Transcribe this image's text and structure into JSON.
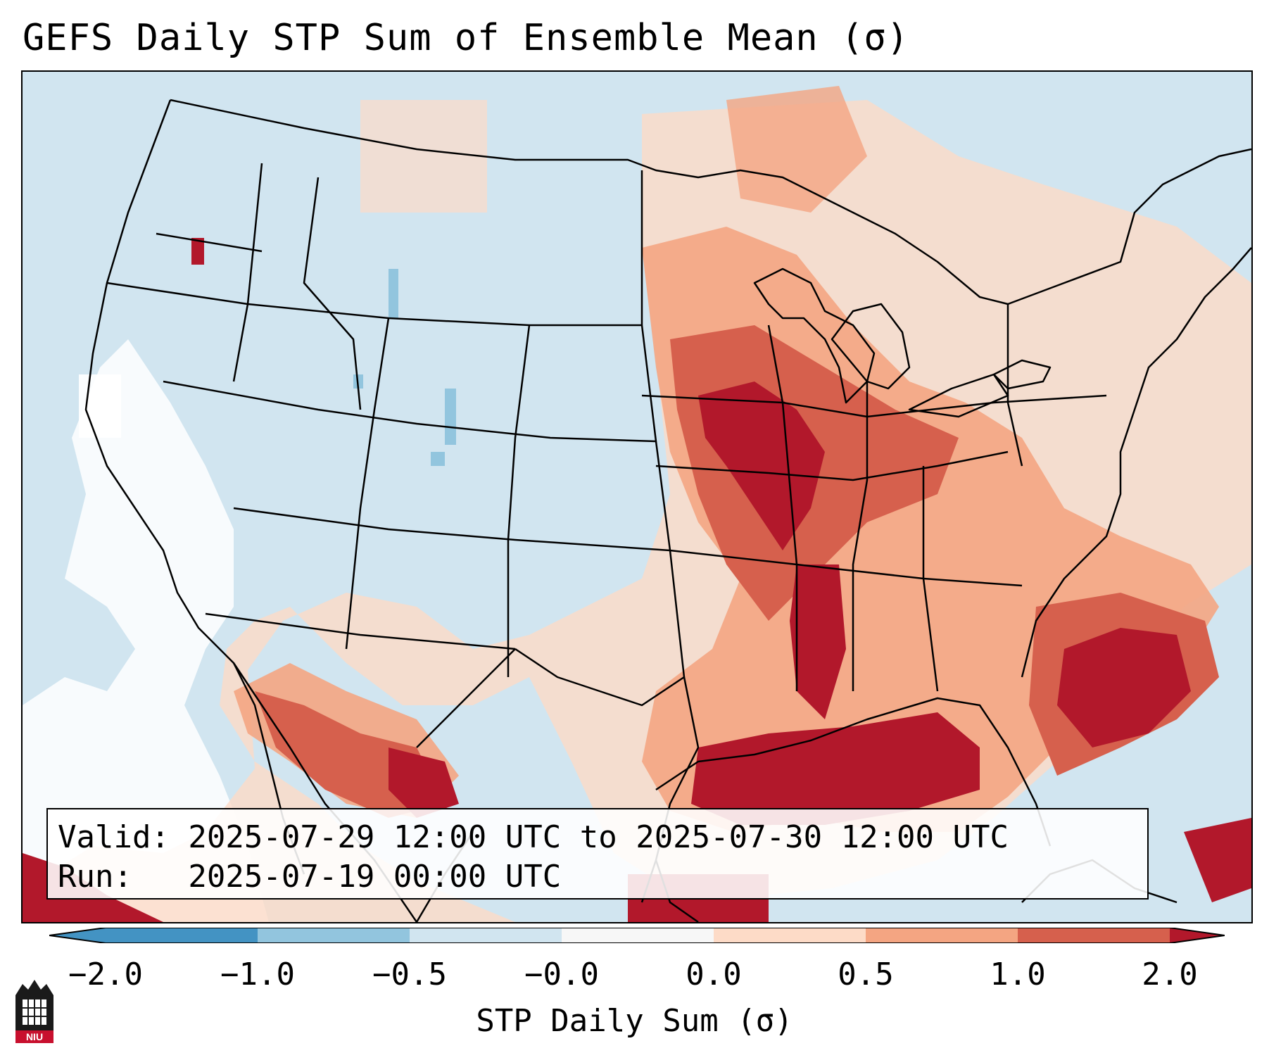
{
  "title": "GEFS Daily STP Sum of Ensemble Mean (σ)",
  "info": {
    "valid_line": "Valid: 2025-07-29 12:00 UTC to 2025-07-30 12:00 UTC",
    "run_line": "Run:   2025-07-19 00:00 UTC"
  },
  "colorbar": {
    "label": "STP Daily Sum (σ)",
    "ticks": [
      "−2.0",
      "−1.0",
      "−0.5",
      "−0.0",
      "0.0",
      "0.5",
      "1.0",
      "2.0"
    ],
    "colors": [
      "#4393c3",
      "#92c5de",
      "#d1e5f0",
      "#f7f7f7",
      "#fddbc7",
      "#f4a582",
      "#d6604d",
      "#b2182b"
    ]
  },
  "map": {
    "region": "Contiguous United States, Gulf of Mexico, northern Mexico",
    "background_color": "#d1e5f0",
    "high_color": "#b2182b"
  },
  "logo": {
    "text": "NIU"
  }
}
